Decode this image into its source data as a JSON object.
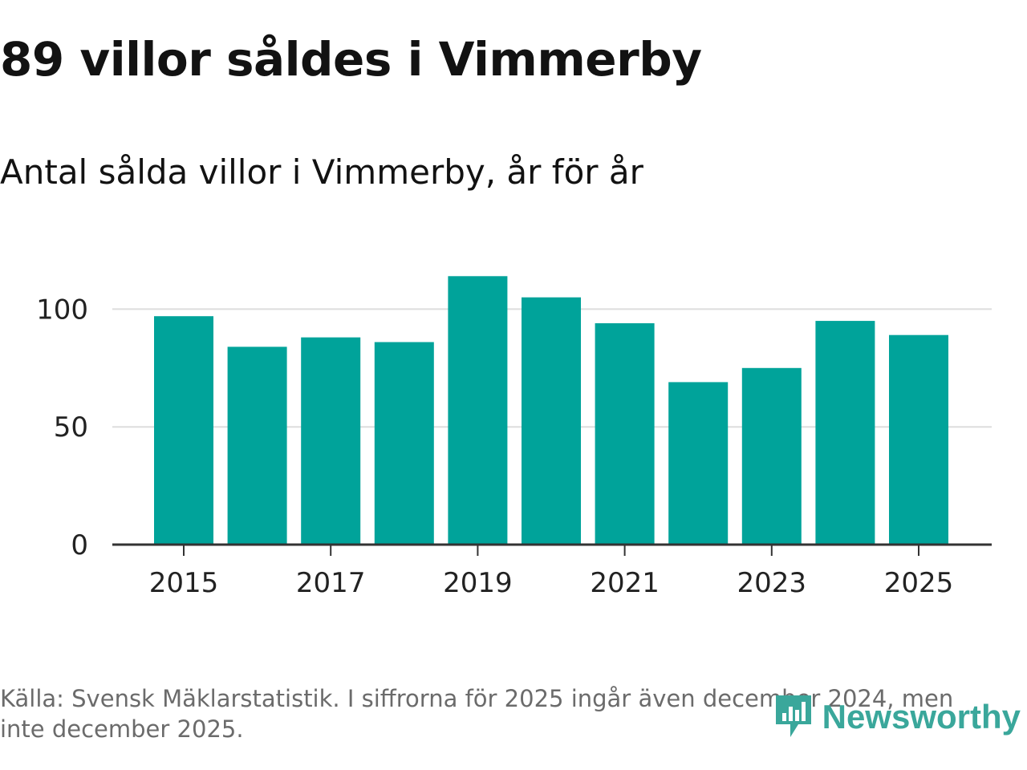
{
  "title": "89 villor såldes i Vimmerby",
  "subtitle": "Antal sålda villor i Vimmerby, år för år",
  "source": "Källa: Svensk Mäklarstatistik. I siffrorna för 2025 ingår även december 2024, men inte december 2025.",
  "brand": {
    "name": "Newsworthy",
    "color": "#3aa79b"
  },
  "colors": {
    "bar": "#00a39a",
    "grid": "#dddddd",
    "axis": "#333333",
    "tick_text": "#222222"
  },
  "chart_data": {
    "type": "bar",
    "title": "89 villor såldes i Vimmerby",
    "subtitle": "Antal sålda villor i Vimmerby, år för år",
    "xlabel": "",
    "ylabel": "",
    "categories": [
      "2015",
      "2016",
      "2017",
      "2018",
      "2019",
      "2020",
      "2021",
      "2022",
      "2023",
      "2024",
      "2025"
    ],
    "values": [
      97,
      84,
      88,
      86,
      114,
      105,
      94,
      69,
      75,
      95,
      89
    ],
    "ylim": [
      0,
      125
    ],
    "yticks": [
      "0",
      "50",
      "100"
    ],
    "xticks": [
      "2015",
      "2017",
      "2019",
      "2021",
      "2023",
      "2025"
    ],
    "grid": true,
    "legend": "none"
  }
}
